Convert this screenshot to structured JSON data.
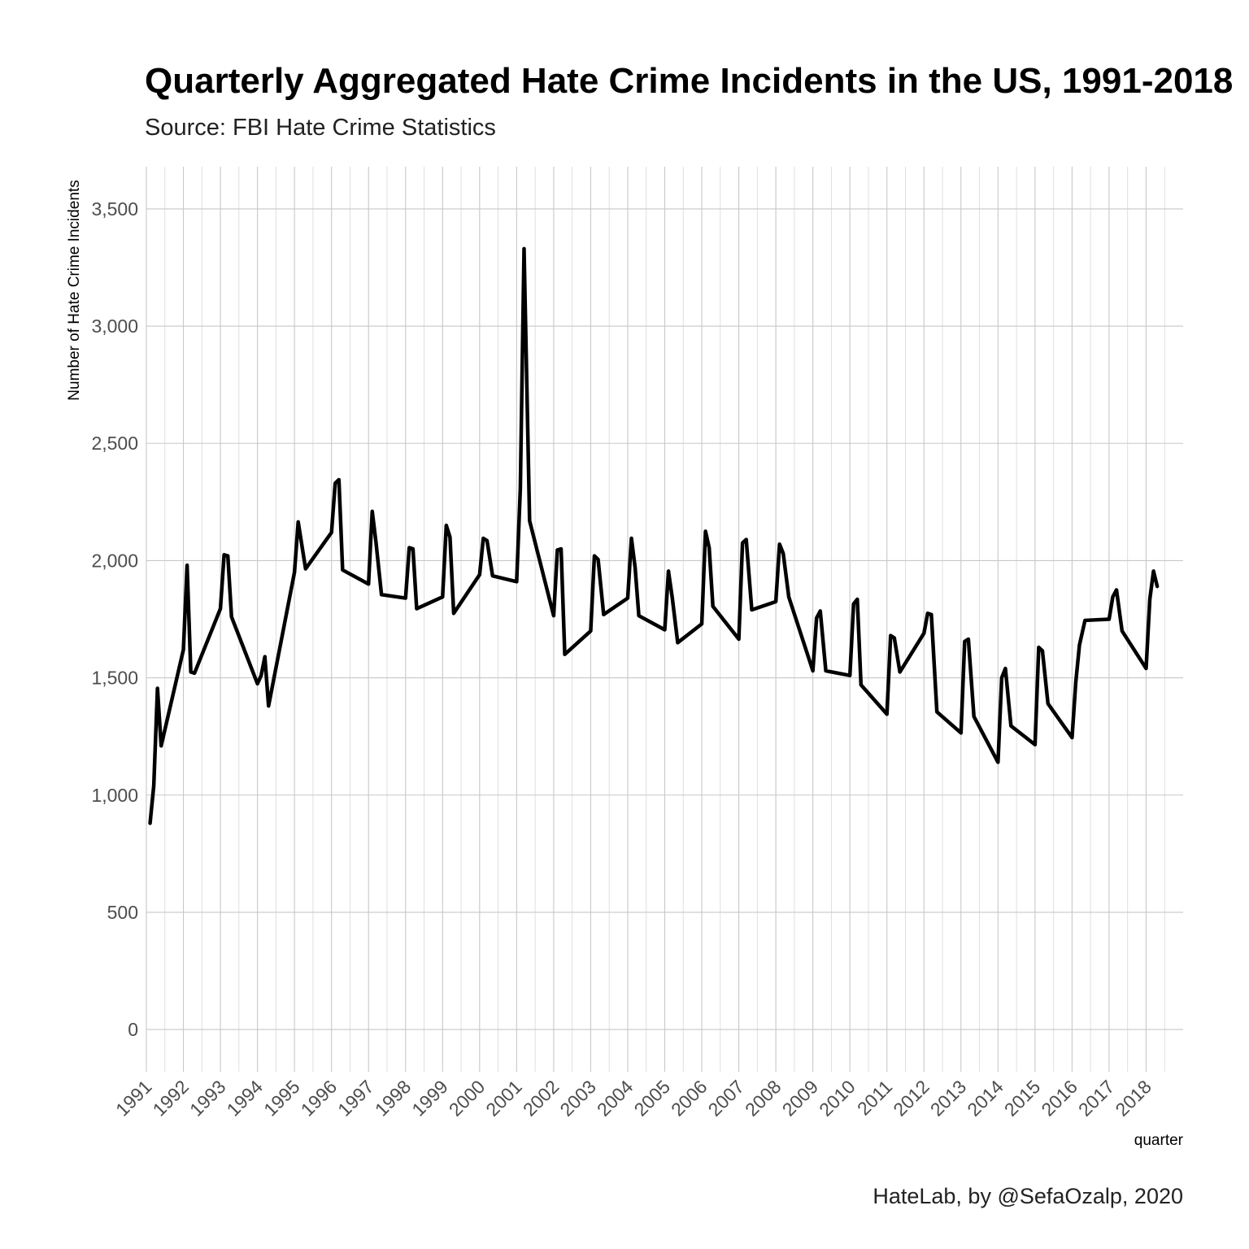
{
  "chart_data": {
    "type": "line",
    "title": "Quarterly Aggregated Hate Crime Incidents in the US, 1991-2018",
    "subtitle": "Source: FBI Hate Crime Statistics",
    "caption": "HateLab, by @SefaOzalp, 2020",
    "xlabel": "quarter",
    "ylabel": "Number of Hate Crime Incidents",
    "ylim": [
      -180,
      3680
    ],
    "xlim": [
      1991.0,
      2019.0
    ],
    "yticks": [
      0,
      500,
      1000,
      1500,
      2000,
      2500,
      3000,
      3500
    ],
    "ytick_labels": [
      "0",
      "500",
      "1,000",
      "1,500",
      "2,000",
      "2,500",
      "3,000",
      "3,500"
    ],
    "xticks": [
      1991,
      1992,
      1993,
      1994,
      1995,
      1996,
      1997,
      1998,
      1999,
      2000,
      2001,
      2002,
      2003,
      2004,
      2005,
      2006,
      2007,
      2008,
      2009,
      2010,
      2011,
      2012,
      2013,
      2014,
      2015,
      2016,
      2017,
      2018
    ],
    "xtick_labels": [
      "1991",
      "1992",
      "1993",
      "1994",
      "1995",
      "1996",
      "1997",
      "1998",
      "1999",
      "2000",
      "2001",
      "2002",
      "2003",
      "2004",
      "2005",
      "2006",
      "2007",
      "2008",
      "2009",
      "2010",
      "2011",
      "2012",
      "2013",
      "2014",
      "2015",
      "2016",
      "2017",
      "2018"
    ],
    "x_tick_rotation": -45,
    "grid": true,
    "legend": "none",
    "line_color": "#000000",
    "x": [
      1991.1,
      1991.2,
      1991.3,
      1991.4,
      1992.0,
      1992.1,
      1992.2,
      1992.3,
      1993.0,
      1993.1,
      1993.2,
      1993.3,
      1994.0,
      1994.1,
      1994.2,
      1994.3,
      1995.0,
      1995.1,
      1995.3,
      1996.0,
      1996.1,
      1996.2,
      1996.3,
      1997.0,
      1997.1,
      1997.2,
      1997.35,
      1998.0,
      1998.1,
      1998.2,
      1998.3,
      1999.0,
      1999.1,
      1999.2,
      1999.3,
      2000.0,
      2000.1,
      2000.2,
      2000.35,
      2001.0,
      2001.1,
      2001.2,
      2001.35,
      2002.0,
      2002.1,
      2002.2,
      2002.3,
      2003.0,
      2003.1,
      2003.2,
      2003.35,
      2004.0,
      2004.1,
      2004.2,
      2004.3,
      2005.0,
      2005.1,
      2005.2,
      2005.35,
      2006.0,
      2006.1,
      2006.2,
      2006.3,
      2007.0,
      2007.1,
      2007.2,
      2007.35,
      2008.0,
      2008.1,
      2008.2,
      2008.35,
      2009.0,
      2009.1,
      2009.2,
      2009.35,
      2010.0,
      2010.1,
      2010.2,
      2010.3,
      2011.0,
      2011.1,
      2011.2,
      2011.35,
      2012.0,
      2012.1,
      2012.2,
      2012.35,
      2013.0,
      2013.1,
      2013.2,
      2013.35,
      2014.0,
      2014.1,
      2014.2,
      2014.35,
      2015.0,
      2015.1,
      2015.2,
      2015.35,
      2016.0,
      2016.1,
      2016.2,
      2016.35,
      2017.0,
      2017.1,
      2017.2,
      2017.35,
      2018.0,
      2018.1,
      2018.2,
      2018.3
    ],
    "series": [
      {
        "values": [
          880,
          1040,
          1455,
          1210,
          1620,
          1980,
          1525,
          1520,
          1795,
          2025,
          2020,
          1760,
          1475,
          1510,
          1590,
          1380,
          1950,
          2165,
          1965,
          2120,
          2330,
          2345,
          1960,
          1900,
          2210,
          2080,
          1855,
          1840,
          2055,
          2050,
          1795,
          1845,
          2150,
          2100,
          1775,
          1940,
          2095,
          2085,
          1935,
          1910,
          2310,
          3330,
          2170,
          1765,
          2045,
          2050,
          1600,
          1700,
          2020,
          2005,
          1770,
          1840,
          2095,
          1970,
          1765,
          1705,
          1955,
          1845,
          1650,
          1730,
          2125,
          2055,
          1805,
          1665,
          2075,
          2090,
          1790,
          1825,
          2070,
          2030,
          1845,
          1530,
          1755,
          1785,
          1530,
          1510,
          1815,
          1835,
          1470,
          1345,
          1680,
          1670,
          1525,
          1690,
          1775,
          1770,
          1355,
          1265,
          1655,
          1665,
          1335,
          1140,
          1500,
          1540,
          1295,
          1215,
          1630,
          1615,
          1390,
          1245,
          1480,
          1640,
          1745,
          1750,
          1845,
          1875,
          1700,
          1540,
          1835,
          1955,
          1890
        ]
      }
    ]
  }
}
